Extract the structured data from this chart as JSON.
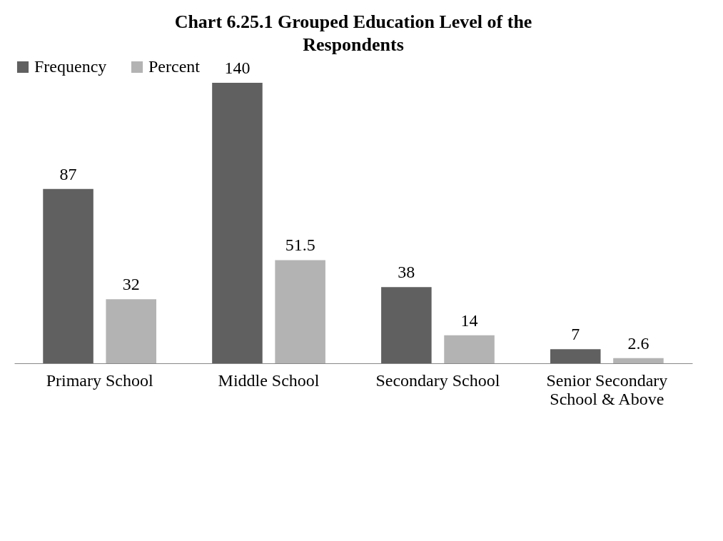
{
  "chart_data": {
    "type": "bar",
    "title": "Chart 6.25.1 Grouped Education Level of the Respondents",
    "categories": [
      "Primary School",
      "Middle School",
      "Secondary School",
      "Senior Secondary School & Above"
    ],
    "series": [
      {
        "name": "Frequency",
        "color": "#606060",
        "values": [
          87,
          140,
          38,
          7
        ]
      },
      {
        "name": "Percent",
        "color": "#b3b3b3",
        "values": [
          32,
          51.5,
          14,
          2.6
        ]
      }
    ],
    "data_labels": true,
    "legend": "top",
    "grid": false
  }
}
